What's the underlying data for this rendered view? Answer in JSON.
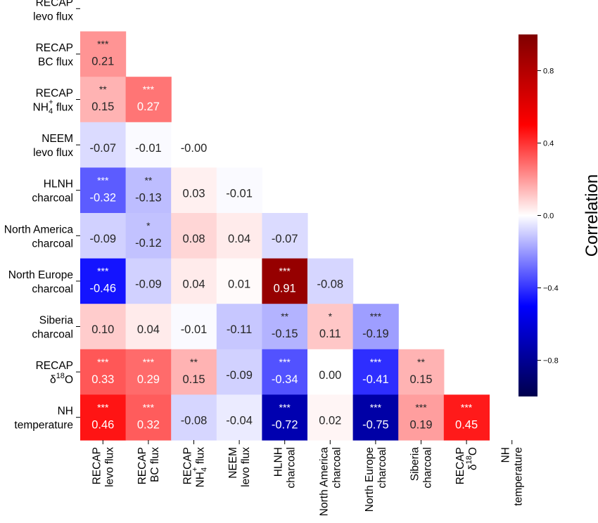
{
  "chart_data": {
    "type": "heatmap",
    "colormap": "seismic",
    "vmin": -1.0,
    "vmax": 1.0,
    "colorbar": {
      "label": "Correlation",
      "ticks": [
        -0.8,
        -0.4,
        0.0,
        0.4,
        0.8
      ],
      "tick_labels": [
        "−0.8",
        "−0.4",
        "0.0",
        "0.4",
        "0.8"
      ]
    },
    "rows": [
      [
        "RECAP",
        "levo flux"
      ],
      [
        "RECAP",
        "BC flux"
      ],
      [
        "RECAP",
        "NH₄⁺ flux"
      ],
      [
        "NEEM",
        "levo flux"
      ],
      [
        "HLNH",
        "charcoal"
      ],
      [
        "North America",
        "charcoal"
      ],
      [
        "North Europe",
        "charcoal"
      ],
      [
        "Siberia",
        "charcoal"
      ],
      [
        "RECAP",
        "δ¹⁸O"
      ],
      [
        "NH",
        "temperature"
      ]
    ],
    "columns": [
      [
        "RECAP",
        "levo flux"
      ],
      [
        "RECAP",
        "BC flux"
      ],
      [
        "RECAP",
        "NH₄⁺ flux"
      ],
      [
        "NEEM",
        "levo flux"
      ],
      [
        "HLNH",
        "charcoal"
      ],
      [
        "North America",
        "charcoal"
      ],
      [
        "North Europe",
        "charcoal"
      ],
      [
        "Siberia",
        "charcoal"
      ],
      [
        "RECAP",
        "δ¹⁸O"
      ],
      [
        "NH",
        "temperature"
      ]
    ],
    "values": [
      [],
      [
        0.21
      ],
      [
        0.15,
        0.27
      ],
      [
        -0.07,
        -0.01,
        -0.0
      ],
      [
        -0.32,
        -0.13,
        0.03,
        -0.01
      ],
      [
        -0.09,
        -0.12,
        0.08,
        0.04,
        -0.07
      ],
      [
        -0.46,
        -0.09,
        0.04,
        0.01,
        0.91,
        -0.08
      ],
      [
        0.1,
        0.04,
        -0.01,
        -0.11,
        -0.15,
        0.11,
        -0.19
      ],
      [
        0.33,
        0.29,
        0.15,
        -0.09,
        -0.34,
        0.0,
        -0.41,
        0.15
      ],
      [
        0.46,
        0.32,
        -0.08,
        -0.04,
        -0.72,
        0.02,
        -0.75,
        0.19,
        0.45
      ]
    ],
    "value_labels": [
      [],
      [
        "0.21"
      ],
      [
        "0.15",
        "0.27"
      ],
      [
        "-0.07",
        "-0.01",
        "-0.00"
      ],
      [
        "-0.32",
        "-0.13",
        "0.03",
        "-0.01"
      ],
      [
        "-0.09",
        "-0.12",
        "0.08",
        "0.04",
        "-0.07"
      ],
      [
        "-0.46",
        "-0.09",
        "0.04",
        "0.01",
        "0.91",
        "-0.08"
      ],
      [
        "0.10",
        "0.04",
        "-0.01",
        "-0.11",
        "-0.15",
        "0.11",
        "-0.19"
      ],
      [
        "0.33",
        "0.29",
        "0.15",
        "-0.09",
        "-0.34",
        "0.00",
        "-0.41",
        "0.15"
      ],
      [
        "0.46",
        "0.32",
        "-0.08",
        "-0.04",
        "-0.72",
        "0.02",
        "-0.75",
        "0.19",
        "0.45"
      ]
    ],
    "significance": [
      [],
      [
        "***"
      ],
      [
        "**",
        "***"
      ],
      [
        "",
        "",
        ""
      ],
      [
        "***",
        "**",
        "",
        ""
      ],
      [
        "",
        "*",
        "",
        "",
        ""
      ],
      [
        "***",
        "",
        "",
        "",
        "***",
        ""
      ],
      [
        "",
        "",
        "",
        "",
        "**",
        "*",
        "***"
      ],
      [
        "***",
        "***",
        "**",
        "",
        "***",
        "",
        "***",
        "**"
      ],
      [
        "***",
        "***",
        "",
        "",
        "***",
        "",
        "***",
        "***",
        "***"
      ]
    ]
  }
}
